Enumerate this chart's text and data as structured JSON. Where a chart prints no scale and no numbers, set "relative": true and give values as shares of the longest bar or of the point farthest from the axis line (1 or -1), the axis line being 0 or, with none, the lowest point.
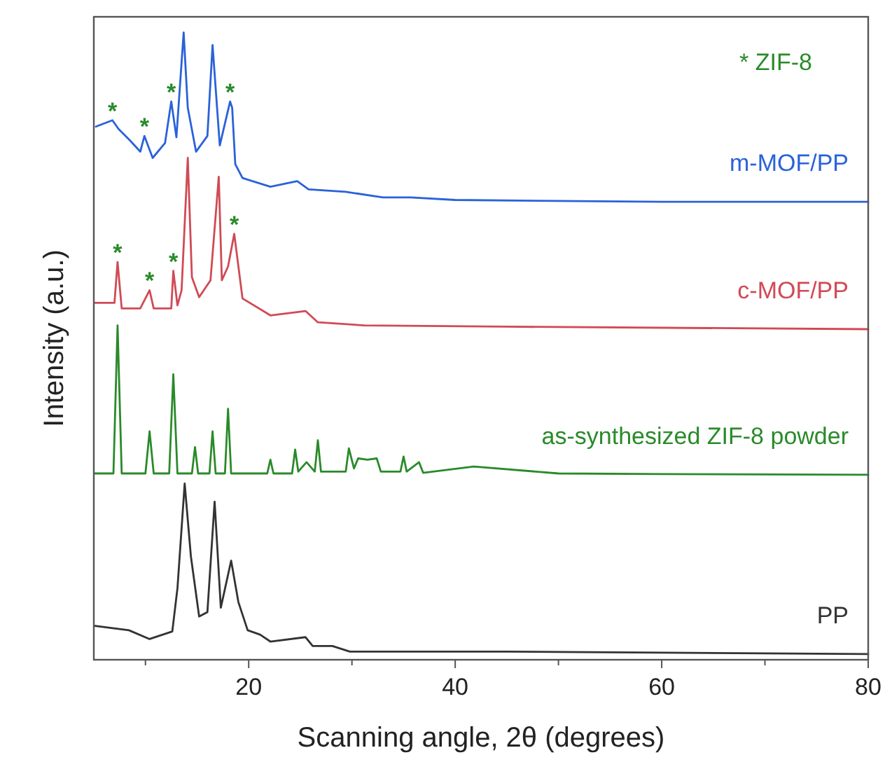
{
  "chart_data": {
    "type": "line",
    "relative": true,
    "xlabel": "Scanning angle, 2θ (degrees)",
    "ylabel": "Intensity (a.u.)",
    "xlim": [
      5,
      80
    ],
    "xticks": [
      {
        "value": 10,
        "label": null
      },
      20,
      {
        "value": 30,
        "label": null
      },
      40,
      {
        "value": 50,
        "label": null
      },
      60,
      {
        "value": 70,
        "label": null
      },
      80
    ],
    "series": [
      {
        "name": "m-MOF/PP",
        "color": "#2a62d8",
        "x": [
          5.2,
          6.8,
          7.4,
          8.5,
          9.5,
          9.9,
          10.7,
          11.9,
          12.5,
          13.0,
          13.7,
          14.1,
          14.9,
          16.0,
          16.5,
          17.2,
          18.2,
          18.4,
          18.7,
          19.4,
          22.1,
          24.7,
          25.8,
          29.4,
          33,
          35.7,
          40,
          60,
          80
        ],
        "values": [
          0.85,
          0.86,
          0.846,
          0.828,
          0.81,
          0.835,
          0.8,
          0.824,
          0.89,
          0.833,
          1.0,
          0.88,
          0.81,
          0.835,
          0.98,
          0.82,
          0.89,
          0.88,
          0.79,
          0.768,
          0.754,
          0.763,
          0.75,
          0.746,
          0.737,
          0.737,
          0.733,
          0.73,
          0.73
        ]
      },
      {
        "name": "c-MOF/PP",
        "color": "#d04a55",
        "x": [
          5.1,
          7.0,
          7.3,
          7.7,
          9.5,
          10.4,
          10.8,
          12.5,
          12.7,
          13.1,
          13.5,
          14.1,
          14.5,
          15.2,
          16.3,
          17.1,
          17.4,
          18.0,
          18.6,
          19.4,
          22.1,
          25.5,
          26.7,
          31.2,
          44.8,
          80
        ],
        "values": [
          0.569,
          0.569,
          0.634,
          0.56,
          0.56,
          0.589,
          0.56,
          0.56,
          0.62,
          0.565,
          0.589,
          0.8,
          0.61,
          0.578,
          0.605,
          0.77,
          0.605,
          0.627,
          0.679,
          0.576,
          0.549,
          0.556,
          0.538,
          0.533,
          0.531,
          0.527
        ]
      },
      {
        "name": "as-synthesized ZIF-8 powder",
        "color": "#2a8a2a",
        "x": [
          5.1,
          6.9,
          7.3,
          7.7,
          10.0,
          10.4,
          10.8,
          12.3,
          12.7,
          13.1,
          14.5,
          14.8,
          15.1,
          16.2,
          16.5,
          16.8,
          17.7,
          18.0,
          18.3,
          21.8,
          22.1,
          22.4,
          24.2,
          24.5,
          24.8,
          25.6,
          26.4,
          26.7,
          27.0,
          29.4,
          29.7,
          30.2,
          30.6,
          31.5,
          32.4,
          32.8,
          34.7,
          35.0,
          35.3,
          36.5,
          36.9,
          41.8,
          50,
          60,
          80
        ],
        "values": [
          0.297,
          0.297,
          0.533,
          0.297,
          0.297,
          0.364,
          0.297,
          0.297,
          0.455,
          0.297,
          0.297,
          0.339,
          0.297,
          0.297,
          0.364,
          0.297,
          0.297,
          0.4,
          0.297,
          0.297,
          0.319,
          0.297,
          0.297,
          0.335,
          0.3,
          0.315,
          0.3,
          0.35,
          0.3,
          0.3,
          0.337,
          0.305,
          0.321,
          0.319,
          0.321,
          0.3,
          0.3,
          0.324,
          0.3,
          0.315,
          0.298,
          0.308,
          0.297,
          0.296,
          0.295
        ]
      },
      {
        "name": "PP",
        "color": "#333333",
        "x": [
          5.1,
          8.4,
          10.4,
          12.6,
          13.1,
          13.8,
          14.4,
          15.2,
          16.0,
          16.7,
          17.3,
          18.3,
          19.0,
          19.9,
          21.1,
          22.1,
          25.5,
          26.2,
          28.1,
          29.8,
          44.8,
          80
        ],
        "values": [
          0.054,
          0.047,
          0.033,
          0.045,
          0.114,
          0.281,
          0.165,
          0.069,
          0.076,
          0.252,
          0.083,
          0.158,
          0.092,
          0.047,
          0.04,
          0.029,
          0.036,
          0.022,
          0.022,
          0.013,
          0.013,
          0.009
        ]
      }
    ],
    "annotations": [
      "* ZIF-8",
      {
        "text": "*",
        "x": 6.8,
        "y": 0.86
      },
      {
        "text": "*",
        "x": 9.9,
        "y": 0.835
      },
      {
        "text": "*",
        "x": 12.5,
        "y": 0.89
      },
      {
        "text": "*",
        "x": 18.2,
        "y": 0.89
      },
      {
        "text": "*",
        "x": 7.3,
        "y": 0.634
      },
      {
        "text": "*",
        "x": 10.4,
        "y": 0.589
      },
      {
        "text": "*",
        "x": 12.7,
        "y": 0.62
      },
      {
        "text": "*",
        "x": 18.6,
        "y": 0.679
      }
    ]
  }
}
